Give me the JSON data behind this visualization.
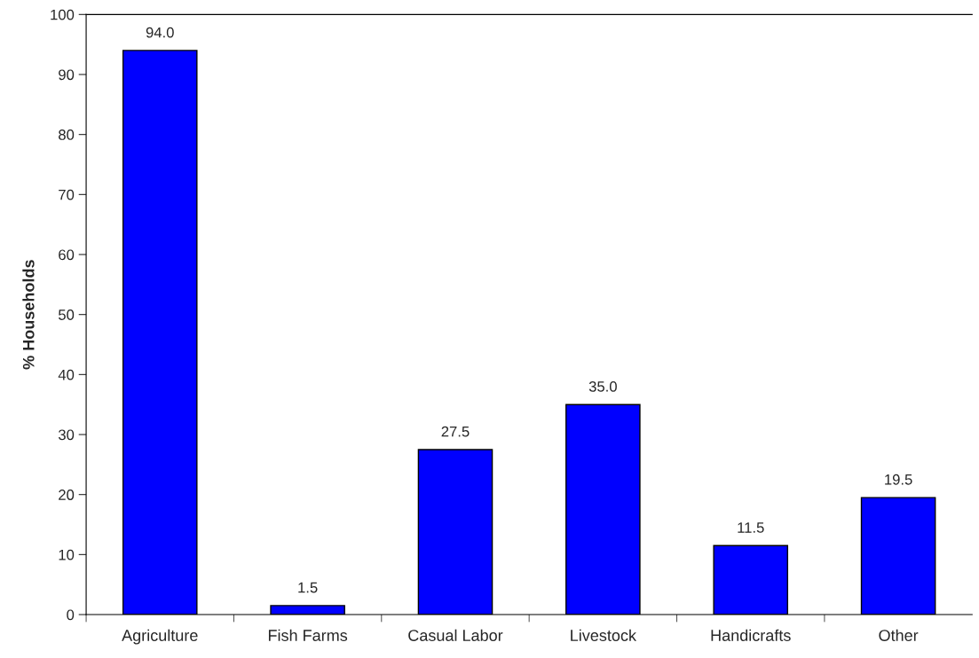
{
  "chart_data": {
    "type": "bar",
    "ylabel": "% Households",
    "categories": [
      "Agriculture",
      "Fish Farms",
      "Casual Labor",
      "Livestock",
      "Handicrafts",
      "Other"
    ],
    "values": [
      94.0,
      1.5,
      27.5,
      35.0,
      11.5,
      19.5
    ],
    "value_labels": [
      "94.0",
      "1.5",
      "27.5",
      "35.0",
      "11.5",
      "19.5"
    ],
    "color": "#0000ff",
    "ylim": [
      0,
      100
    ],
    "yticks": [
      0,
      10,
      20,
      30,
      40,
      50,
      60,
      70,
      80,
      90,
      100
    ],
    "grid": false
  }
}
